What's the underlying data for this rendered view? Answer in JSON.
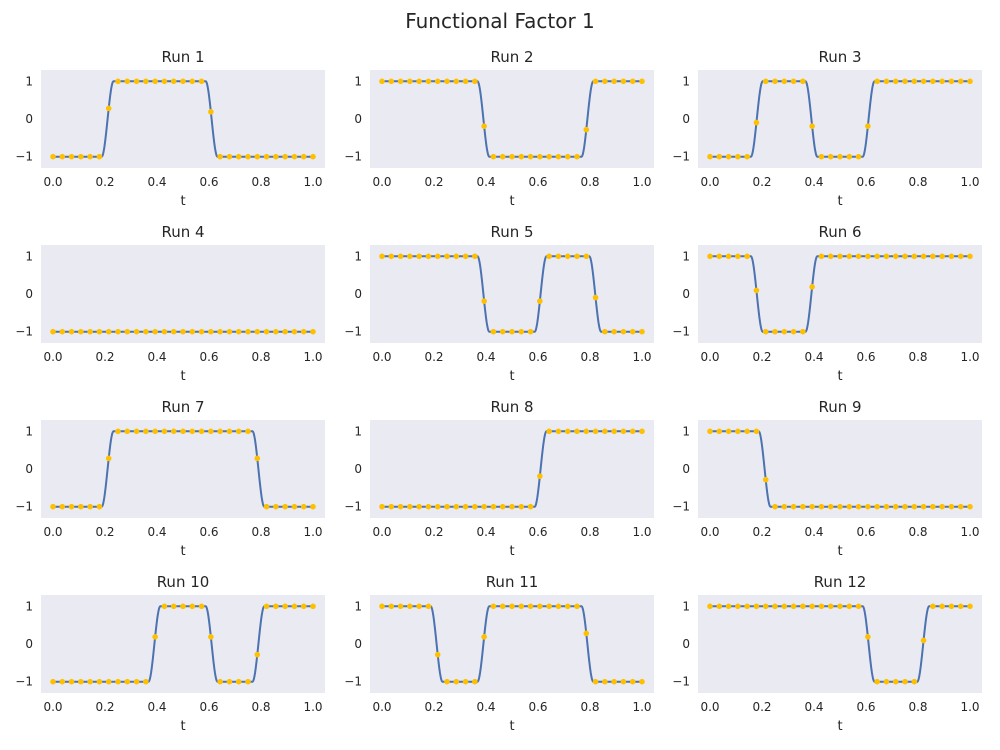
{
  "figure": {
    "title": "Functional Factor 1"
  },
  "colors": {
    "line": "#4c72b0",
    "marker": "#ffc000",
    "panel_bg": "#eaeaf2"
  },
  "chart_data": [
    {
      "type": "line",
      "title": "Run 1",
      "xlabel": "t",
      "xlim": [
        0,
        1
      ],
      "ylim": [
        -1.3,
        1.3
      ],
      "xticks": [
        "0.0",
        "0.2",
        "0.4",
        "0.6",
        "0.8",
        "1.0"
      ],
      "yticks": [
        "−1",
        "0",
        "1"
      ],
      "grid": false,
      "transitions": [
        {
          "t": 0.21,
          "to": 1
        },
        {
          "t": 0.61,
          "to": -1
        }
      ],
      "initial": -1
    },
    {
      "type": "line",
      "title": "Run 2",
      "xlabel": "t",
      "xlim": [
        0,
        1
      ],
      "ylim": [
        -1.3,
        1.3
      ],
      "xticks": [
        "0.0",
        "0.2",
        "0.4",
        "0.6",
        "0.8",
        "1.0"
      ],
      "yticks": [
        "−1",
        "0",
        "1"
      ],
      "grid": false,
      "transitions": [
        {
          "t": 0.39,
          "to": -1
        },
        {
          "t": 0.79,
          "to": 1
        }
      ],
      "initial": 1
    },
    {
      "type": "line",
      "title": "Run 3",
      "xlabel": "t",
      "xlim": [
        0,
        1
      ],
      "ylim": [
        -1.3,
        1.3
      ],
      "xticks": [
        "0.0",
        "0.2",
        "0.4",
        "0.6",
        "0.8",
        "1.0"
      ],
      "yticks": [
        "−1",
        "0",
        "1"
      ],
      "grid": false,
      "transitions": [
        {
          "t": 0.18,
          "to": 1
        },
        {
          "t": 0.39,
          "to": -1
        },
        {
          "t": 0.61,
          "to": 1
        }
      ],
      "initial": -1
    },
    {
      "type": "line",
      "title": "Run 4",
      "xlabel": "t",
      "xlim": [
        0,
        1
      ],
      "ylim": [
        -1.3,
        1.3
      ],
      "xticks": [
        "0.0",
        "0.2",
        "0.4",
        "0.6",
        "0.8",
        "1.0"
      ],
      "yticks": [
        "−1",
        "0",
        "1"
      ],
      "grid": false,
      "transitions": [],
      "initial": -1
    },
    {
      "type": "line",
      "title": "Run 5",
      "xlabel": "t",
      "xlim": [
        0,
        1
      ],
      "ylim": [
        -1.3,
        1.3
      ],
      "xticks": [
        "0.0",
        "0.2",
        "0.4",
        "0.6",
        "0.8",
        "1.0"
      ],
      "yticks": [
        "−1",
        "0",
        "1"
      ],
      "grid": false,
      "transitions": [
        {
          "t": 0.39,
          "to": -1
        },
        {
          "t": 0.61,
          "to": 1
        },
        {
          "t": 0.82,
          "to": -1
        }
      ],
      "initial": 1
    },
    {
      "type": "line",
      "title": "Run 6",
      "xlabel": "t",
      "xlim": [
        0,
        1
      ],
      "ylim": [
        -1.3,
        1.3
      ],
      "xticks": [
        "0.0",
        "0.2",
        "0.4",
        "0.6",
        "0.8",
        "1.0"
      ],
      "yticks": [
        "−1",
        "0",
        "1"
      ],
      "grid": false,
      "transitions": [
        {
          "t": 0.18,
          "to": -1
        },
        {
          "t": 0.39,
          "to": 1
        }
      ],
      "initial": 1
    },
    {
      "type": "line",
      "title": "Run 7",
      "xlabel": "t",
      "xlim": [
        0,
        1
      ],
      "ylim": [
        -1.3,
        1.3
      ],
      "xticks": [
        "0.0",
        "0.2",
        "0.4",
        "0.6",
        "0.8",
        "1.0"
      ],
      "yticks": [
        "−1",
        "0",
        "1"
      ],
      "grid": false,
      "transitions": [
        {
          "t": 0.21,
          "to": 1
        },
        {
          "t": 0.79,
          "to": -1
        }
      ],
      "initial": -1
    },
    {
      "type": "line",
      "title": "Run 8",
      "xlabel": "t",
      "xlim": [
        0,
        1
      ],
      "ylim": [
        -1.3,
        1.3
      ],
      "xticks": [
        "0.0",
        "0.2",
        "0.4",
        "0.6",
        "0.8",
        "1.0"
      ],
      "yticks": [
        "−1",
        "0",
        "1"
      ],
      "grid": false,
      "transitions": [
        {
          "t": 0.61,
          "to": 1
        }
      ],
      "initial": -1
    },
    {
      "type": "line",
      "title": "Run 9",
      "xlabel": "t",
      "xlim": [
        0,
        1
      ],
      "ylim": [
        -1.3,
        1.3
      ],
      "xticks": [
        "0.0",
        "0.2",
        "0.4",
        "0.6",
        "0.8",
        "1.0"
      ],
      "yticks": [
        "−1",
        "0",
        "1"
      ],
      "grid": false,
      "transitions": [
        {
          "t": 0.21,
          "to": -1
        }
      ],
      "initial": 1
    },
    {
      "type": "line",
      "title": "Run 10",
      "xlabel": "t",
      "xlim": [
        0,
        1
      ],
      "ylim": [
        -1.3,
        1.3
      ],
      "xticks": [
        "0.0",
        "0.2",
        "0.4",
        "0.6",
        "0.8",
        "1.0"
      ],
      "yticks": [
        "−1",
        "0",
        "1"
      ],
      "grid": false,
      "transitions": [
        {
          "t": 0.39,
          "to": 1
        },
        {
          "t": 0.61,
          "to": -1
        },
        {
          "t": 0.79,
          "to": 1
        }
      ],
      "initial": -1
    },
    {
      "type": "line",
      "title": "Run 11",
      "xlabel": "t",
      "xlim": [
        0,
        1
      ],
      "ylim": [
        -1.3,
        1.3
      ],
      "xticks": [
        "0.0",
        "0.2",
        "0.4",
        "0.6",
        "0.8",
        "1.0"
      ],
      "yticks": [
        "−1",
        "0",
        "1"
      ],
      "grid": false,
      "transitions": [
        {
          "t": 0.21,
          "to": -1
        },
        {
          "t": 0.39,
          "to": 1
        },
        {
          "t": 0.79,
          "to": -1
        }
      ],
      "initial": 1
    },
    {
      "type": "line",
      "title": "Run 12",
      "xlabel": "t",
      "xlim": [
        0,
        1
      ],
      "ylim": [
        -1.3,
        1.3
      ],
      "xticks": [
        "0.0",
        "0.2",
        "0.4",
        "0.6",
        "0.8",
        "1.0"
      ],
      "yticks": [
        "−1",
        "0",
        "1"
      ],
      "grid": false,
      "transitions": [
        {
          "t": 0.61,
          "to": -1
        },
        {
          "t": 0.82,
          "to": 1
        }
      ],
      "initial": 1
    }
  ]
}
